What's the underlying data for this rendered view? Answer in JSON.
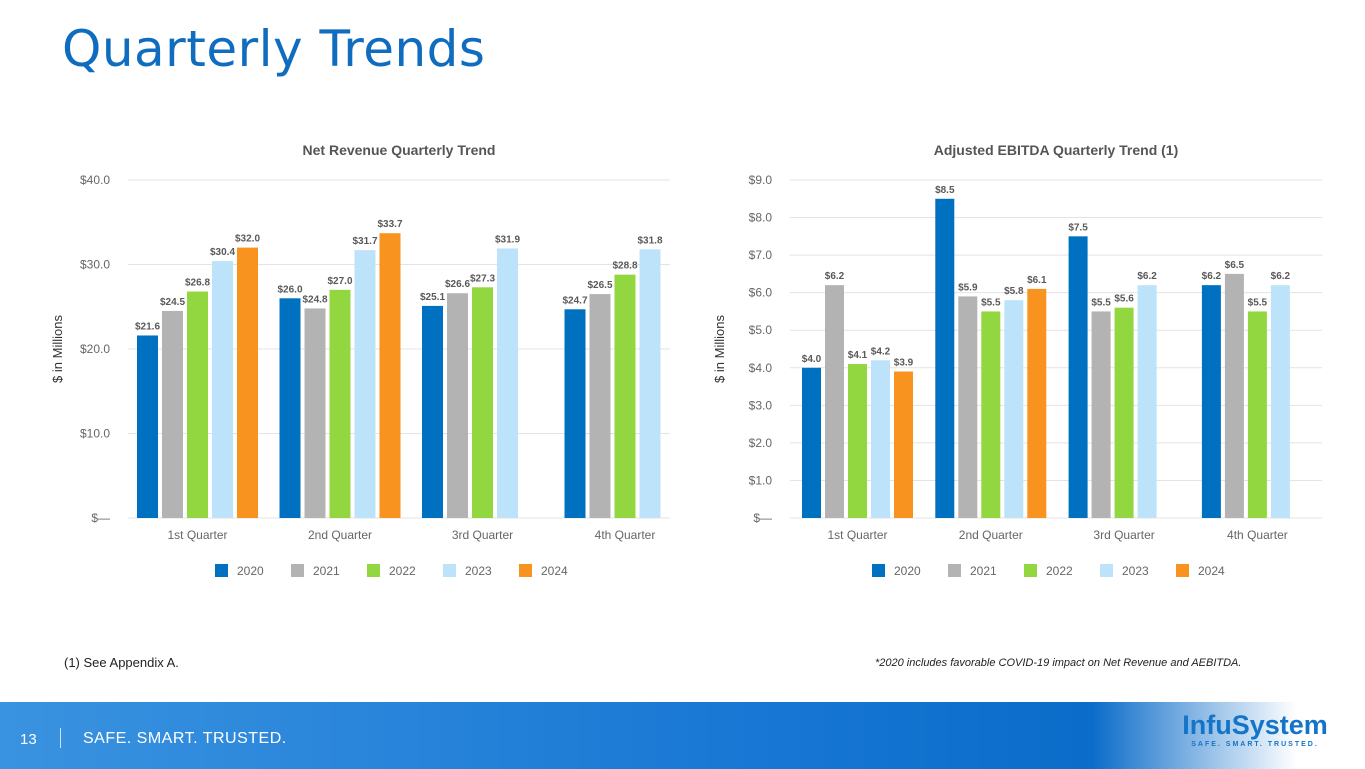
{
  "title": "Quarterly Trends",
  "footnote_left": "(1) See Appendix A.",
  "footnote_right": "*2020 includes favorable COVID-19 impact on Net Revenue and AEBITDA.",
  "footer": {
    "page": "13",
    "tagline": "SAFE. SMART. TRUSTED.",
    "logo_name": "InfuSystem",
    "logo_tagline": "SAFE. SMART. TRUSTED."
  },
  "chart_data": [
    {
      "type": "bar",
      "title": "Net Revenue Quarterly Trend",
      "ylabel": "$ in Millions",
      "xlabel": "",
      "categories": [
        "1st Quarter",
        "2nd Quarter",
        "3rd Quarter",
        "4th Quarter"
      ],
      "ylim": [
        0,
        40
      ],
      "yticks": [
        "$—",
        "$10.0",
        "$20.0",
        "$30.0",
        "$40.0"
      ],
      "grid": true,
      "legend": "bottom",
      "series": [
        {
          "name": "2020",
          "color": "#0070c0",
          "values": [
            21.6,
            26.0,
            25.1,
            24.7
          ],
          "labels": [
            "$21.6",
            "$26.0",
            "$25.1",
            "$24.7"
          ]
        },
        {
          "name": "2021",
          "color": "#b3b3b3",
          "values": [
            24.5,
            24.8,
            26.6,
            26.5
          ],
          "labels": [
            "$24.5",
            "$24.8",
            "$26.6",
            "$26.5"
          ]
        },
        {
          "name": "2022",
          "color": "#92d640",
          "values": [
            26.8,
            27.0,
            27.3,
            28.8
          ],
          "labels": [
            "$26.8",
            "$27.0",
            "$27.3",
            "$28.8"
          ]
        },
        {
          "name": "2023",
          "color": "#bde3fb",
          "values": [
            30.4,
            31.7,
            31.9,
            31.8
          ],
          "labels": [
            "$30.4",
            "$31.7",
            "$31.9",
            "$31.8"
          ]
        },
        {
          "name": "2024",
          "color": "#f7931e",
          "values": [
            32.0,
            33.7,
            null,
            null
          ],
          "labels": [
            "$32.0",
            "$33.7",
            "",
            ""
          ]
        }
      ]
    },
    {
      "type": "bar",
      "title": "Adjusted EBITDA Quarterly Trend (1)",
      "ylabel": "$ in Millions",
      "xlabel": "",
      "categories": [
        "1st Quarter",
        "2nd Quarter",
        "3rd Quarter",
        "4th Quarter"
      ],
      "ylim": [
        0,
        9
      ],
      "yticks": [
        "$—",
        "$1.0",
        "$2.0",
        "$3.0",
        "$4.0",
        "$5.0",
        "$6.0",
        "$7.0",
        "$8.0",
        "$9.0"
      ],
      "grid": true,
      "legend": "bottom",
      "series": [
        {
          "name": "2020",
          "color": "#0070c0",
          "values": [
            4.0,
            8.5,
            7.5,
            6.2
          ],
          "labels": [
            "$4.0",
            "$8.5",
            "$7.5",
            "$6.2"
          ]
        },
        {
          "name": "2021",
          "color": "#b3b3b3",
          "values": [
            6.2,
            5.9,
            5.5,
            6.5
          ],
          "labels": [
            "$6.2",
            "$5.9",
            "$5.5",
            "$6.5"
          ]
        },
        {
          "name": "2022",
          "color": "#92d640",
          "values": [
            4.1,
            5.5,
            5.6,
            5.5
          ],
          "labels": [
            "$4.1",
            "$5.5",
            "$5.6",
            "$5.5"
          ]
        },
        {
          "name": "2023",
          "color": "#bde3fb",
          "values": [
            4.2,
            5.8,
            6.2,
            6.2
          ],
          "labels": [
            "$4.2",
            "$5.8",
            "$6.2",
            "$6.2"
          ]
        },
        {
          "name": "2024",
          "color": "#f7931e",
          "values": [
            3.9,
            6.1,
            null,
            null
          ],
          "labels": [
            "$3.9",
            "$6.1",
            "",
            ""
          ]
        }
      ]
    }
  ]
}
